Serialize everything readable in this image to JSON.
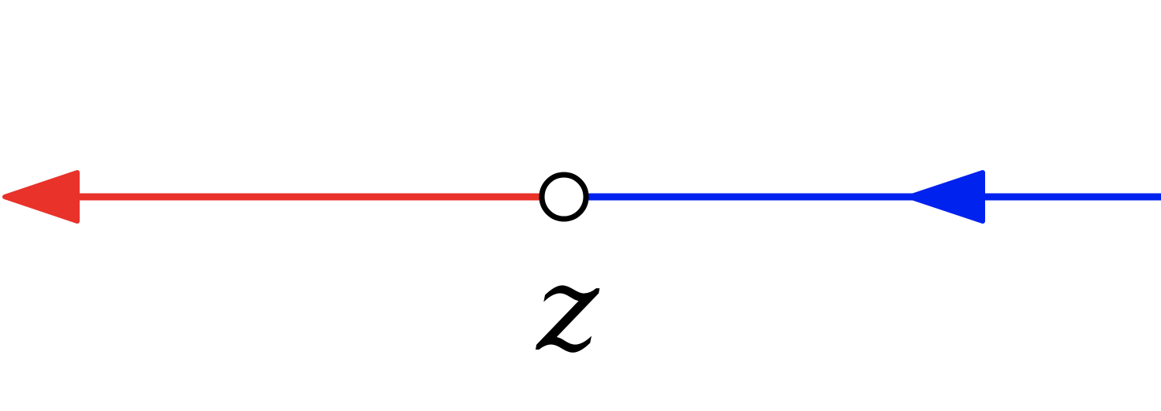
{
  "diagram": {
    "point_label": "z",
    "left_segment": {
      "color": "#e8322a",
      "arrow_direction": "left"
    },
    "right_segment": {
      "color": "#0022ee",
      "arrow_direction": "left"
    },
    "point": {
      "style": "open-circle",
      "stroke_color": "#000000",
      "fill_color": "#ffffff"
    }
  }
}
